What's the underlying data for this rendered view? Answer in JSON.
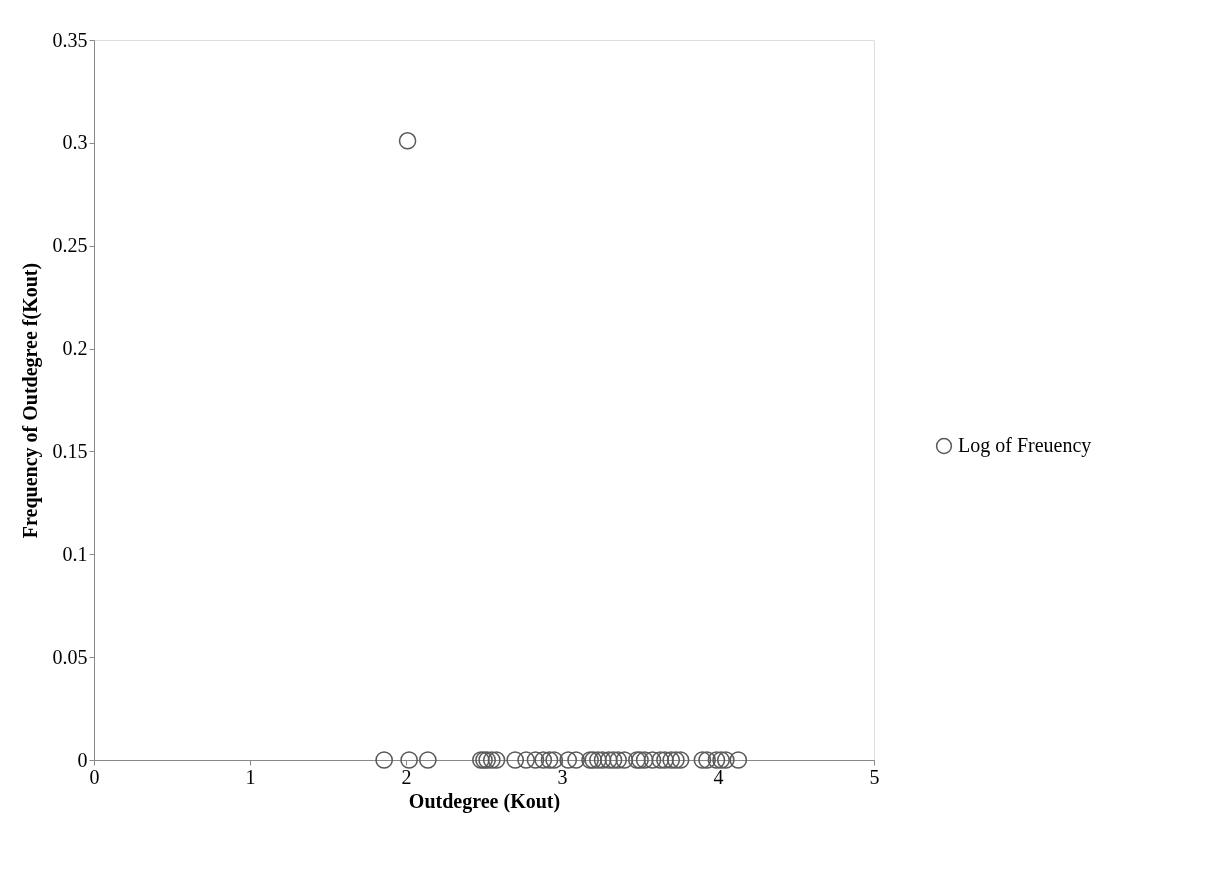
{
  "chart_data": {
    "type": "scatter",
    "xlabel": "Outdegree (Kout)",
    "ylabel": "Frequency of Outdegree f(Kout)",
    "x": [
      1.86,
      2.02,
      2.14,
      2.48,
      2.5,
      2.52,
      2.55,
      2.58,
      2.7,
      2.77,
      2.83,
      2.88,
      2.92,
      2.95,
      3.04,
      3.09,
      3.18,
      3.2,
      3.23,
      3.26,
      3.3,
      3.33,
      3.36,
      3.4,
      3.48,
      3.5,
      3.53,
      3.58,
      3.63,
      3.66,
      3.7,
      3.73,
      3.76,
      3.9,
      3.93,
      3.99,
      4.02,
      4.05,
      4.13,
      2.01
    ],
    "series": [
      {
        "name": "Log of Freuency",
        "color": "#595959",
        "values": [
          0,
          0,
          0,
          0,
          0,
          0,
          0,
          0,
          0,
          0,
          0,
          0,
          0,
          0,
          0,
          0,
          0,
          0,
          0,
          0,
          0,
          0,
          0,
          0,
          0,
          0,
          0,
          0,
          0,
          0,
          0,
          0,
          0,
          0,
          0,
          0,
          0,
          0,
          0,
          0.301
        ]
      }
    ],
    "xlim": [
      0,
      5
    ],
    "xticks": [
      0,
      1,
      2,
      3,
      4,
      5
    ],
    "ylim": [
      0,
      0.35
    ],
    "yticks": [
      0,
      0.05,
      0.1,
      0.15,
      0.2,
      0.25,
      0.3,
      0.35
    ],
    "grid": false,
    "legend": "right",
    "marker": "circle"
  }
}
